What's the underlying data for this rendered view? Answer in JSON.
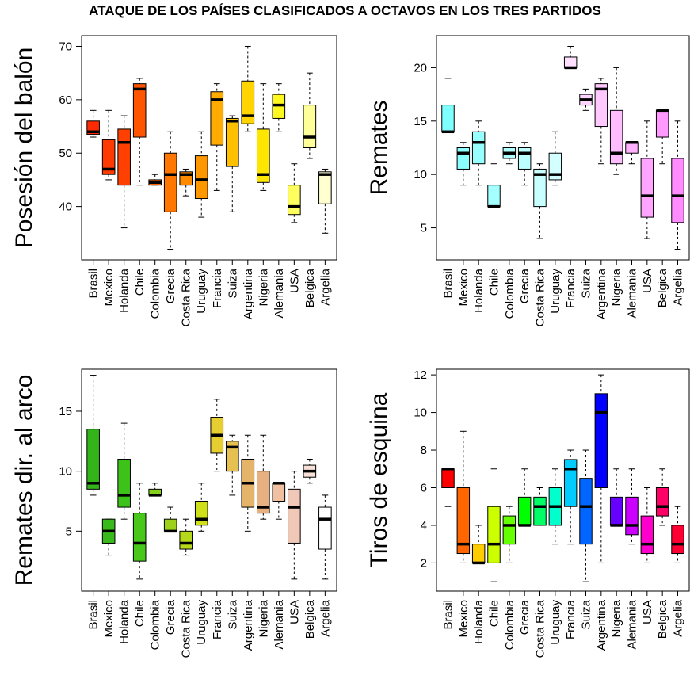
{
  "title": "ATAQUE DE LOS PAÍSES CLASIFICADOS A OCTAVOS EN LOS TRES PARTIDOS",
  "chart_data": [
    {
      "type": "boxplot",
      "ylabel": "Posesión del balón",
      "categories": [
        "Brasil",
        "Mexico",
        "Holanda",
        "Chile",
        "Colombia",
        "Grecia",
        "Costa Rica",
        "Uruguay",
        "Francia",
        "Suiza",
        "Argentina",
        "Nigeria",
        "Alemania",
        "USA",
        "Belgica",
        "Argelia"
      ],
      "ylim": [
        30,
        72
      ],
      "yticks": [
        40,
        50,
        60,
        70
      ],
      "colors": [
        "#ff2a00",
        "#ff3a00",
        "#ff4000",
        "#ff5500",
        "#ff6000",
        "#ff7600",
        "#ff8a00",
        "#ff9800",
        "#ffab00",
        "#ffc000",
        "#ffd400",
        "#ffe600",
        "#fff81e",
        "#ffff60",
        "#ffff9a",
        "#ffffd0"
      ],
      "boxes": [
        {
          "min": 53,
          "q1": 53.5,
          "median": 54,
          "q3": 56,
          "max": 58
        },
        {
          "min": 45,
          "q1": 46,
          "median": 47,
          "q3": 52.5,
          "max": 58
        },
        {
          "min": 36,
          "q1": 44,
          "median": 52,
          "q3": 54.5,
          "max": 57
        },
        {
          "min": 44,
          "q1": 53,
          "median": 62,
          "q3": 63,
          "max": 64
        },
        {
          "min": 44,
          "q1": 44,
          "median": 44.5,
          "q3": 45,
          "max": 46
        },
        {
          "min": 32,
          "q1": 39,
          "median": 46,
          "q3": 50,
          "max": 54
        },
        {
          "min": 42,
          "q1": 44,
          "median": 46,
          "q3": 46.5,
          "max": 47
        },
        {
          "min": 38,
          "q1": 41.5,
          "median": 45,
          "q3": 49.5,
          "max": 54
        },
        {
          "min": 43,
          "q1": 51.5,
          "median": 60,
          "q3": 61.5,
          "max": 63
        },
        {
          "min": 39,
          "q1": 47.5,
          "median": 56,
          "q3": 56.5,
          "max": 57
        },
        {
          "min": 54,
          "q1": 55.5,
          "median": 57,
          "q3": 63.5,
          "max": 70
        },
        {
          "min": 43,
          "q1": 44.5,
          "median": 46,
          "q3": 54.5,
          "max": 63
        },
        {
          "min": 54,
          "q1": 56.5,
          "median": 59,
          "q3": 61,
          "max": 63
        },
        {
          "min": 37,
          "q1": 38.5,
          "median": 40,
          "q3": 44,
          "max": 48
        },
        {
          "min": 49,
          "q1": 51,
          "median": 53,
          "q3": 59,
          "max": 65
        },
        {
          "min": 35,
          "q1": 40.5,
          "median": 46,
          "q3": 46.5,
          "max": 47
        }
      ]
    },
    {
      "type": "boxplot",
      "ylabel": "Remates",
      "categories": [
        "Brasil",
        "Mexico",
        "Holanda",
        "Chile",
        "Colombia",
        "Grecia",
        "Costa Rica",
        "Uruguay",
        "Francia",
        "Suiza",
        "Argentina",
        "Nigeria",
        "Alemania",
        "USA",
        "Belgica",
        "Argelia"
      ],
      "ylim": [
        2,
        23
      ],
      "yticks": [
        5,
        10,
        15,
        20
      ],
      "colors": [
        "#80ffff",
        "#8cffff",
        "#98ffff",
        "#a4ffff",
        "#b0ffff",
        "#bcffff",
        "#c8ffff",
        "#d4ffff",
        "#ffe0ff",
        "#ffd4ff",
        "#ffc8ff",
        "#ffbcff",
        "#ffb0ff",
        "#ffa4ff",
        "#ff98ff",
        "#ff8cff"
      ],
      "boxes": [
        {
          "min": 14,
          "q1": 14,
          "median": 14,
          "q3": 16.5,
          "max": 19
        },
        {
          "min": 9,
          "q1": 10.5,
          "median": 12,
          "q3": 12.5,
          "max": 13
        },
        {
          "min": 9,
          "q1": 11,
          "median": 13,
          "q3": 14,
          "max": 15
        },
        {
          "min": 7,
          "q1": 7,
          "median": 7,
          "q3": 9,
          "max": 11
        },
        {
          "min": 11,
          "q1": 11.5,
          "median": 12,
          "q3": 12.5,
          "max": 13
        },
        {
          "min": 9,
          "q1": 10.5,
          "median": 12,
          "q3": 12.5,
          "max": 13
        },
        {
          "min": 4,
          "q1": 7,
          "median": 10,
          "q3": 10.5,
          "max": 11
        },
        {
          "min": 9,
          "q1": 9.5,
          "median": 10,
          "q3": 12,
          "max": 14
        },
        {
          "min": 20,
          "q1": 20,
          "median": 20,
          "q3": 21,
          "max": 22
        },
        {
          "min": 16,
          "q1": 16.5,
          "median": 17,
          "q3": 17.5,
          "max": 18
        },
        {
          "min": 11,
          "q1": 14.5,
          "median": 18,
          "q3": 18.5,
          "max": 19
        },
        {
          "min": 10,
          "q1": 11,
          "median": 12,
          "q3": 16,
          "max": 20
        },
        {
          "min": 11,
          "q1": 12,
          "median": 13,
          "q3": 13,
          "max": 13
        },
        {
          "min": 4,
          "q1": 6,
          "median": 8,
          "q3": 11.5,
          "max": 15
        },
        {
          "min": 11,
          "q1": 13.5,
          "median": 16,
          "q3": 16,
          "max": 16
        },
        {
          "min": 3,
          "q1": 5.5,
          "median": 8,
          "q3": 11.5,
          "max": 15
        }
      ]
    },
    {
      "type": "boxplot",
      "ylabel": "Remates dir. al arco",
      "categories": [
        "Brasil",
        "Mexico",
        "Holanda",
        "Chile",
        "Colombia",
        "Grecia",
        "Costa Rica",
        "Uruguay",
        "Francia",
        "Suiza",
        "Argentina",
        "Nigeria",
        "Alemania",
        "USA",
        "Belgica",
        "Argelia"
      ],
      "ylim": [
        0,
        18.5
      ],
      "yticks": [
        5,
        10,
        15
      ],
      "colors": [
        "#33b51a",
        "#38bb1a",
        "#3dc21a",
        "#47c81a",
        "#85d01a",
        "#9ed21a",
        "#b6d81a",
        "#cfdf1a",
        "#e6ce30",
        "#e6c050",
        "#e6b468",
        "#e8b080",
        "#f0c0a0",
        "#f0c8b8",
        "#f7e0d8",
        "#ffffff"
      ],
      "boxes": [
        {
          "min": 8,
          "q1": 8.5,
          "median": 9,
          "q3": 13.5,
          "max": 18
        },
        {
          "min": 3,
          "q1": 4,
          "median": 5,
          "q3": 6,
          "max": 6
        },
        {
          "min": 6,
          "q1": 7,
          "median": 8,
          "q3": 11,
          "max": 14
        },
        {
          "min": 1,
          "q1": 2.5,
          "median": 4,
          "q3": 6.5,
          "max": 9
        },
        {
          "min": 8,
          "q1": 8,
          "median": 8,
          "q3": 8.5,
          "max": 9
        },
        {
          "min": 5,
          "q1": 5,
          "median": 5,
          "q3": 6,
          "max": 7
        },
        {
          "min": 3,
          "q1": 3.5,
          "median": 4,
          "q3": 5,
          "max": 6
        },
        {
          "min": 5,
          "q1": 5.5,
          "median": 6,
          "q3": 7.5,
          "max": 9
        },
        {
          "min": 10,
          "q1": 11.5,
          "median": 13,
          "q3": 14.5,
          "max": 16
        },
        {
          "min": 8,
          "q1": 10,
          "median": 12,
          "q3": 12.5,
          "max": 13
        },
        {
          "min": 5,
          "q1": 7,
          "median": 9,
          "q3": 11,
          "max": 13
        },
        {
          "min": 6,
          "q1": 6.5,
          "median": 7,
          "q3": 10,
          "max": 13
        },
        {
          "min": 6,
          "q1": 7.5,
          "median": 9,
          "q3": 9,
          "max": 9
        },
        {
          "min": 1,
          "q1": 4,
          "median": 7,
          "q3": 8.5,
          "max": 10
        },
        {
          "min": 9,
          "q1": 9.5,
          "median": 10,
          "q3": 10.5,
          "max": 11
        },
        {
          "min": 1,
          "q1": 3.5,
          "median": 6,
          "q3": 7,
          "max": 8
        }
      ]
    },
    {
      "type": "boxplot",
      "ylabel": "Tiros de esquina",
      "categories": [
        "Brasil",
        "Mexico",
        "Holanda",
        "Chile",
        "Colombia",
        "Grecia",
        "Costa Rica",
        "Uruguay",
        "Francia",
        "Suiza",
        "Argentina",
        "Nigeria",
        "Alemania",
        "USA",
        "Belgica",
        "Argelia"
      ],
      "ylim": [
        0.5,
        12.3
      ],
      "yticks": [
        2,
        4,
        6,
        8,
        10,
        12
      ],
      "colors": [
        "#ff0000",
        "#ff6600",
        "#ffcc00",
        "#ccff00",
        "#66ff00",
        "#00ff00",
        "#00ff66",
        "#00ffcc",
        "#00ccff",
        "#0066ff",
        "#0000ff",
        "#6600ff",
        "#cc00ff",
        "#ff00cc",
        "#ff0066",
        "#ff0033"
      ],
      "boxes": [
        {
          "min": 5,
          "q1": 6,
          "median": 7,
          "q3": 7,
          "max": 7
        },
        {
          "min": 2,
          "q1": 2.5,
          "median": 3,
          "q3": 6,
          "max": 9
        },
        {
          "min": 2,
          "q1": 2,
          "median": 2,
          "q3": 3,
          "max": 4
        },
        {
          "min": 1,
          "q1": 2,
          "median": 3,
          "q3": 5,
          "max": 7
        },
        {
          "min": 2,
          "q1": 3,
          "median": 4,
          "q3": 4.5,
          "max": 5
        },
        {
          "min": 4,
          "q1": 4,
          "median": 4,
          "q3": 5.5,
          "max": 7
        },
        {
          "min": 4,
          "q1": 4,
          "median": 5,
          "q3": 5.5,
          "max": 6
        },
        {
          "min": 3,
          "q1": 4,
          "median": 5,
          "q3": 6,
          "max": 7
        },
        {
          "min": 3,
          "q1": 5,
          "median": 7,
          "q3": 7.5,
          "max": 8
        },
        {
          "min": 1,
          "q1": 3,
          "median": 5,
          "q3": 6.5,
          "max": 8
        },
        {
          "min": 2,
          "q1": 6,
          "median": 10,
          "q3": 11,
          "max": 12
        },
        {
          "min": 4,
          "q1": 4,
          "median": 4,
          "q3": 5.5,
          "max": 7
        },
        {
          "min": 3,
          "q1": 3.5,
          "median": 4,
          "q3": 5.5,
          "max": 7
        },
        {
          "min": 2,
          "q1": 2.5,
          "median": 3,
          "q3": 4.5,
          "max": 6
        },
        {
          "min": 4,
          "q1": 4.5,
          "median": 5,
          "q3": 6,
          "max": 7
        },
        {
          "min": 2,
          "q1": 2.5,
          "median": 3,
          "q3": 4,
          "max": 5
        }
      ]
    }
  ]
}
